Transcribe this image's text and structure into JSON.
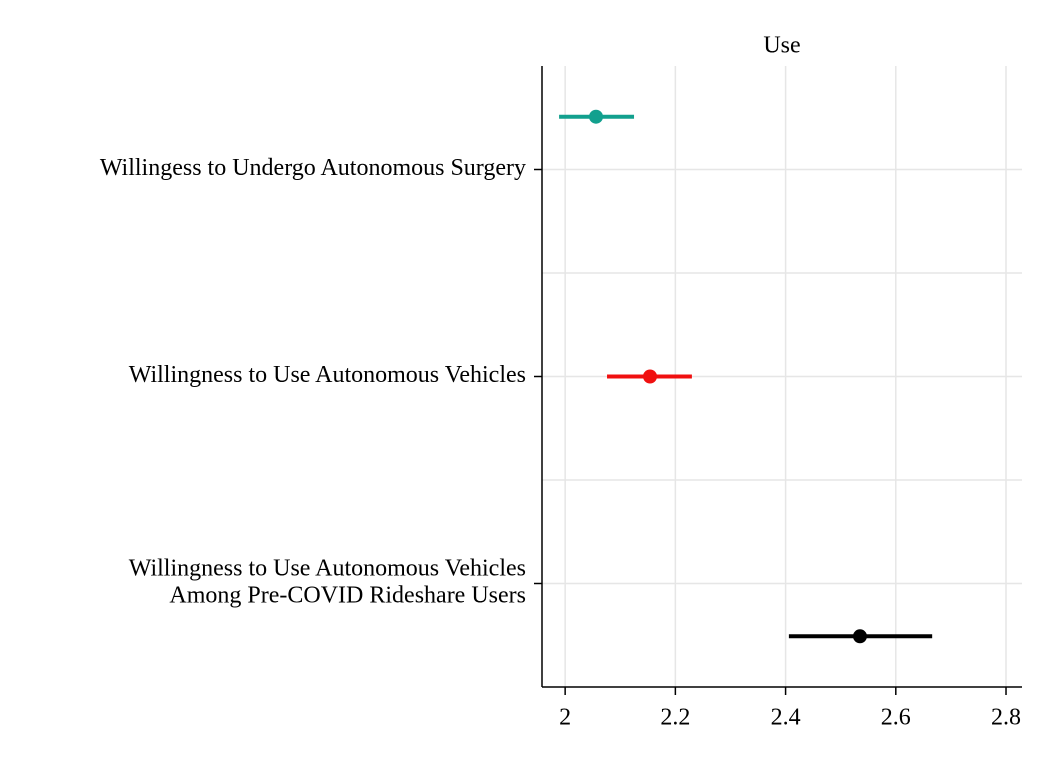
{
  "chart_data": {
    "type": "coefplot",
    "title": "Use",
    "categories": [
      [
        "Willingess to Undergo Autonomous Surgery"
      ],
      [
        "Willingness to Use Autonomous Vehicles"
      ],
      [
        "Willingness to Use Autonomous Vehicles",
        "Among Pre-COVID Rideshare Users"
      ]
    ],
    "values": [
      2.056,
      2.154,
      2.535
    ],
    "lower": [
      1.989,
      2.076,
      2.406
    ],
    "upper": [
      2.125,
      2.23,
      2.666
    ],
    "colors": [
      "#12a08e",
      "#f01010",
      "#000000"
    ],
    "xlim": [
      1.958,
      2.829
    ],
    "xticks": [
      2,
      2.2,
      2.4,
      2.6,
      2.8
    ],
    "grid": true
  }
}
